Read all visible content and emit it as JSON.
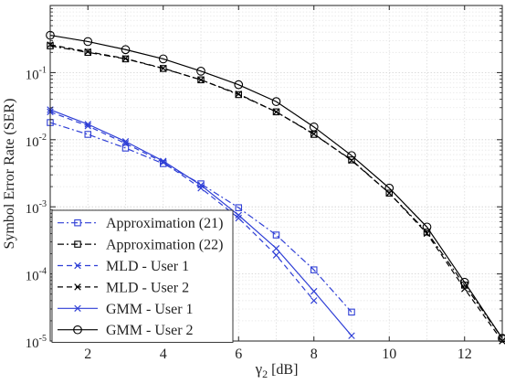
{
  "chart_data": {
    "type": "line",
    "xlabel_main": "γ",
    "xlabel_sub": "2",
    "xlabel_unit": " [dB]",
    "ylabel": "Symbol Error Rate (SER)",
    "xlim": [
      1,
      13
    ],
    "ylim": [
      1e-05,
      1
    ],
    "yscale": "log",
    "grid": true,
    "legend_position": "bottom-left",
    "x_ticks": [
      2,
      4,
      6,
      8,
      10,
      12
    ],
    "y_ticks": [
      {
        "exp": -5,
        "base": "10",
        "sup": "-5"
      },
      {
        "exp": -4,
        "base": "10",
        "sup": "-4"
      },
      {
        "exp": -3,
        "base": "10",
        "sup": "-3"
      },
      {
        "exp": -2,
        "base": "10",
        "sup": "-2"
      },
      {
        "exp": -1,
        "base": "10",
        "sup": "-1"
      }
    ],
    "series": [
      {
        "name": "Approximation (21)",
        "color": "#2f3fd6",
        "dash": "7,3,2,3",
        "marker": "square",
        "x": [
          1,
          2,
          3,
          4,
          5,
          6,
          7,
          8,
          9
        ],
        "y": [
          0.018,
          0.012,
          0.0075,
          0.0044,
          0.0022,
          0.00097,
          0.00038,
          0.000115,
          2.7e-05
        ]
      },
      {
        "name": "Approximation (22)",
        "color": "#000000",
        "dash": "7,3,2,3",
        "marker": "square",
        "x": [
          1,
          2,
          3,
          4,
          5,
          6,
          7,
          8,
          9,
          10,
          11,
          12,
          13
        ],
        "y": [
          0.25,
          0.2,
          0.16,
          0.115,
          0.078,
          0.047,
          0.026,
          0.012,
          0.005,
          0.0016,
          0.00042,
          6.8e-05,
          1.1e-05
        ]
      },
      {
        "name": "MLD - User 1",
        "color": "#2f3fd6",
        "dash": "6,4",
        "marker": "x",
        "x": [
          1,
          2,
          3,
          4,
          5,
          6,
          7,
          8
        ],
        "y": [
          0.026,
          0.016,
          0.0088,
          0.0046,
          0.0019,
          0.00068,
          0.00019,
          4e-05
        ]
      },
      {
        "name": "MLD - User 2",
        "color": "#000000",
        "dash": "6,4",
        "marker": "x",
        "x": [
          1,
          2,
          3,
          4,
          5,
          6,
          7,
          8,
          9,
          10,
          11,
          12,
          13
        ],
        "y": [
          0.26,
          0.205,
          0.162,
          0.116,
          0.078,
          0.048,
          0.026,
          0.0122,
          0.0049,
          0.0016,
          0.0004,
          6e-05,
          1e-05
        ]
      },
      {
        "name": "GMM - User 1",
        "color": "#2f3fd6",
        "dash": "",
        "marker": "x",
        "x": [
          1,
          2,
          3,
          4,
          5,
          6,
          7,
          8,
          9
        ],
        "y": [
          0.028,
          0.017,
          0.0094,
          0.0048,
          0.0021,
          0.00075,
          0.00024,
          5.5e-05,
          1.2e-05
        ]
      },
      {
        "name": "GMM - User 2",
        "color": "#000000",
        "dash": "",
        "marker": "circle",
        "x": [
          1,
          2,
          3,
          4,
          5,
          6,
          7,
          8,
          9,
          10,
          11,
          12,
          13
        ],
        "y": [
          0.36,
          0.29,
          0.22,
          0.16,
          0.105,
          0.066,
          0.037,
          0.0155,
          0.0058,
          0.0019,
          0.0005,
          7.5e-05,
          1.1e-05
        ]
      }
    ]
  }
}
